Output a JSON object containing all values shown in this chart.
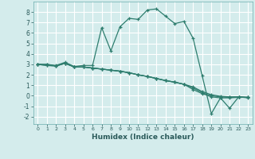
{
  "xlabel": "Humidex (Indice chaleur)",
  "xlim": [
    -0.5,
    23.5
  ],
  "ylim": [
    -2.7,
    9.0
  ],
  "yticks": [
    -2,
    -1,
    0,
    1,
    2,
    3,
    4,
    5,
    6,
    7,
    8
  ],
  "xticks": [
    0,
    1,
    2,
    3,
    4,
    5,
    6,
    7,
    8,
    9,
    10,
    11,
    12,
    13,
    14,
    15,
    16,
    17,
    18,
    19,
    20,
    21,
    22,
    23
  ],
  "bg_color": "#d4ecec",
  "grid_color": "#ffffff",
  "line_color": "#2e7d6e",
  "series1": [
    3.0,
    3.0,
    2.9,
    3.2,
    2.8,
    2.9,
    2.9,
    6.5,
    4.3,
    6.6,
    7.4,
    7.3,
    8.2,
    8.3,
    7.6,
    6.9,
    7.1,
    5.5,
    1.9,
    -1.7,
    -0.2,
    -1.2,
    -0.1,
    -0.2
  ],
  "series2": [
    3.0,
    3.0,
    2.85,
    3.1,
    2.75,
    2.75,
    2.65,
    2.55,
    2.45,
    2.35,
    2.2,
    2.0,
    1.85,
    1.65,
    1.45,
    1.3,
    1.1,
    0.85,
    0.4,
    0.1,
    -0.05,
    -0.1,
    -0.1,
    -0.15
  ],
  "series3": [
    3.0,
    2.9,
    2.85,
    3.1,
    2.75,
    2.75,
    2.65,
    2.55,
    2.45,
    2.35,
    2.2,
    2.0,
    1.85,
    1.65,
    1.45,
    1.3,
    1.1,
    0.75,
    0.3,
    0.0,
    -0.1,
    -0.15,
    -0.1,
    -0.15
  ],
  "series4": [
    3.0,
    2.9,
    2.85,
    3.1,
    2.75,
    2.75,
    2.65,
    2.55,
    2.45,
    2.35,
    2.2,
    2.0,
    1.85,
    1.65,
    1.45,
    1.3,
    1.1,
    0.6,
    0.2,
    -0.1,
    -0.2,
    -0.2,
    -0.15,
    -0.15
  ]
}
